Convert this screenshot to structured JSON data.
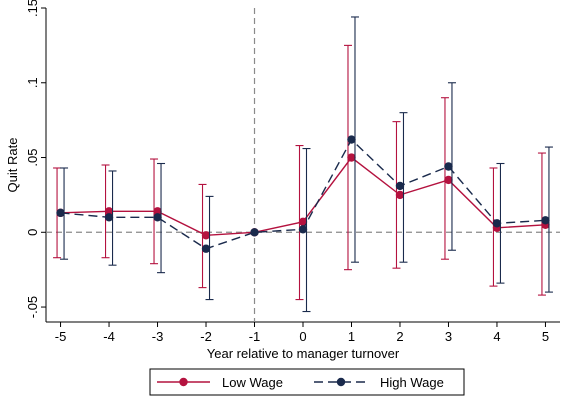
{
  "chart_data": {
    "type": "line",
    "xlabel": "Year relative to manager turnover",
    "ylabel": "Quit Rate",
    "x": [
      -5,
      -4,
      -3,
      -2,
      -1,
      0,
      1,
      2,
      3,
      4,
      5
    ],
    "x_tick_labels": [
      "-5",
      "-4",
      "-3",
      "-2",
      "-1",
      "0",
      "1",
      "2",
      "3",
      "4",
      "5"
    ],
    "y_ticks": [
      -0.05,
      0,
      0.05,
      0.1,
      0.15
    ],
    "y_tick_labels": [
      "-.05",
      "0",
      ".05",
      ".1",
      ".15"
    ],
    "xlim": [
      -5.3,
      5.3
    ],
    "ylim": [
      -0.06,
      0.15
    ],
    "reference_lines": {
      "vertical_x": -1,
      "horizontal_y": 0
    },
    "grid": false,
    "legend_position": "bottom",
    "series": [
      {
        "name": "Low Wage",
        "color": "#b4123f",
        "line_style": "solid",
        "values": [
          0.013,
          0.014,
          0.014,
          -0.002,
          0.0,
          0.007,
          0.05,
          0.025,
          0.035,
          0.003,
          0.005
        ],
        "ci_low": [
          -0.017,
          -0.017,
          -0.021,
          -0.037,
          0.0,
          -0.045,
          -0.025,
          -0.024,
          -0.018,
          -0.036,
          -0.042
        ],
        "ci_high": [
          0.043,
          0.045,
          0.049,
          0.032,
          0.0,
          0.058,
          0.125,
          0.074,
          0.09,
          0.043,
          0.053
        ]
      },
      {
        "name": "High Wage",
        "color": "#1a2a4c",
        "line_style": "dashed",
        "values": [
          0.013,
          0.01,
          0.01,
          -0.011,
          0.0,
          0.002,
          0.062,
          0.031,
          0.044,
          0.006,
          0.008
        ],
        "ci_low": [
          -0.018,
          -0.022,
          -0.027,
          -0.045,
          0.0,
          -0.053,
          -0.02,
          -0.02,
          -0.012,
          -0.034,
          -0.04
        ],
        "ci_high": [
          0.043,
          0.041,
          0.046,
          0.024,
          0.0,
          0.056,
          0.144,
          0.08,
          0.1,
          0.046,
          0.057
        ]
      }
    ]
  }
}
